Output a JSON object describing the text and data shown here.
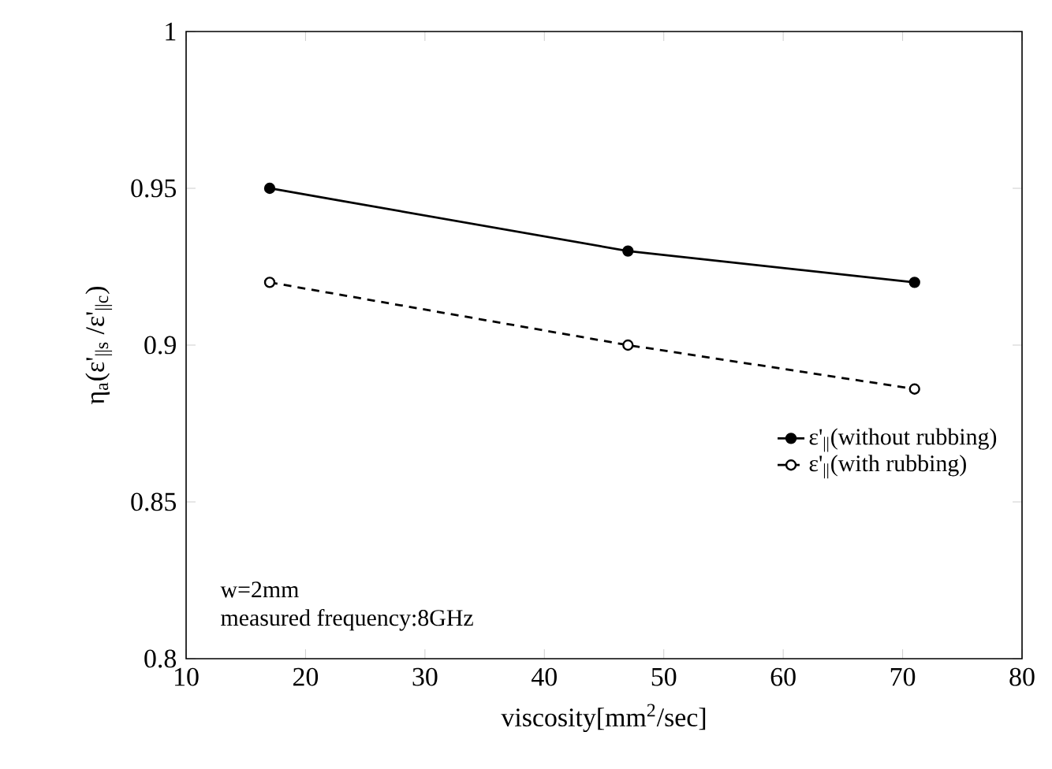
{
  "chart_data": {
    "type": "line",
    "xlabel": "viscosity[mm$^{2}$/sec]",
    "ylabel": "η$_{a}$(ε'$_{||s}$ /ε'$_{||c}$)",
    "x": [
      17,
      47,
      71
    ],
    "series": [
      {
        "name": "ε'$_{||}$(without rubbing)",
        "color": "#000000",
        "values": [
          0.95,
          0.93,
          0.92
        ],
        "marker": "circle",
        "line_style": "solid"
      },
      {
        "name": "ε'$_{||}$(with rubbing)",
        "color": "#000000",
        "values": [
          0.92,
          0.9,
          0.886
        ],
        "marker": "circle",
        "line_style": "dashed"
      }
    ],
    "xlim": [
      10,
      80
    ],
    "xticks": [
      10,
      20,
      30,
      40,
      50,
      60,
      70,
      80
    ],
    "ylim": [
      0.8,
      1
    ],
    "yticks": [
      {
        "value": 0.8,
        "label": "0.8"
      },
      {
        "value": 0.85,
        "label": "0.85"
      },
      {
        "value": 0.9,
        "label": "0.9"
      },
      {
        "value": 0.95,
        "label": "0.95"
      },
      {
        "value": 1,
        "label": "1"
      }
    ],
    "grid": false,
    "legend": "right",
    "annotations": [
      "w=2mm",
      "measured frequency:8GHz"
    ]
  }
}
